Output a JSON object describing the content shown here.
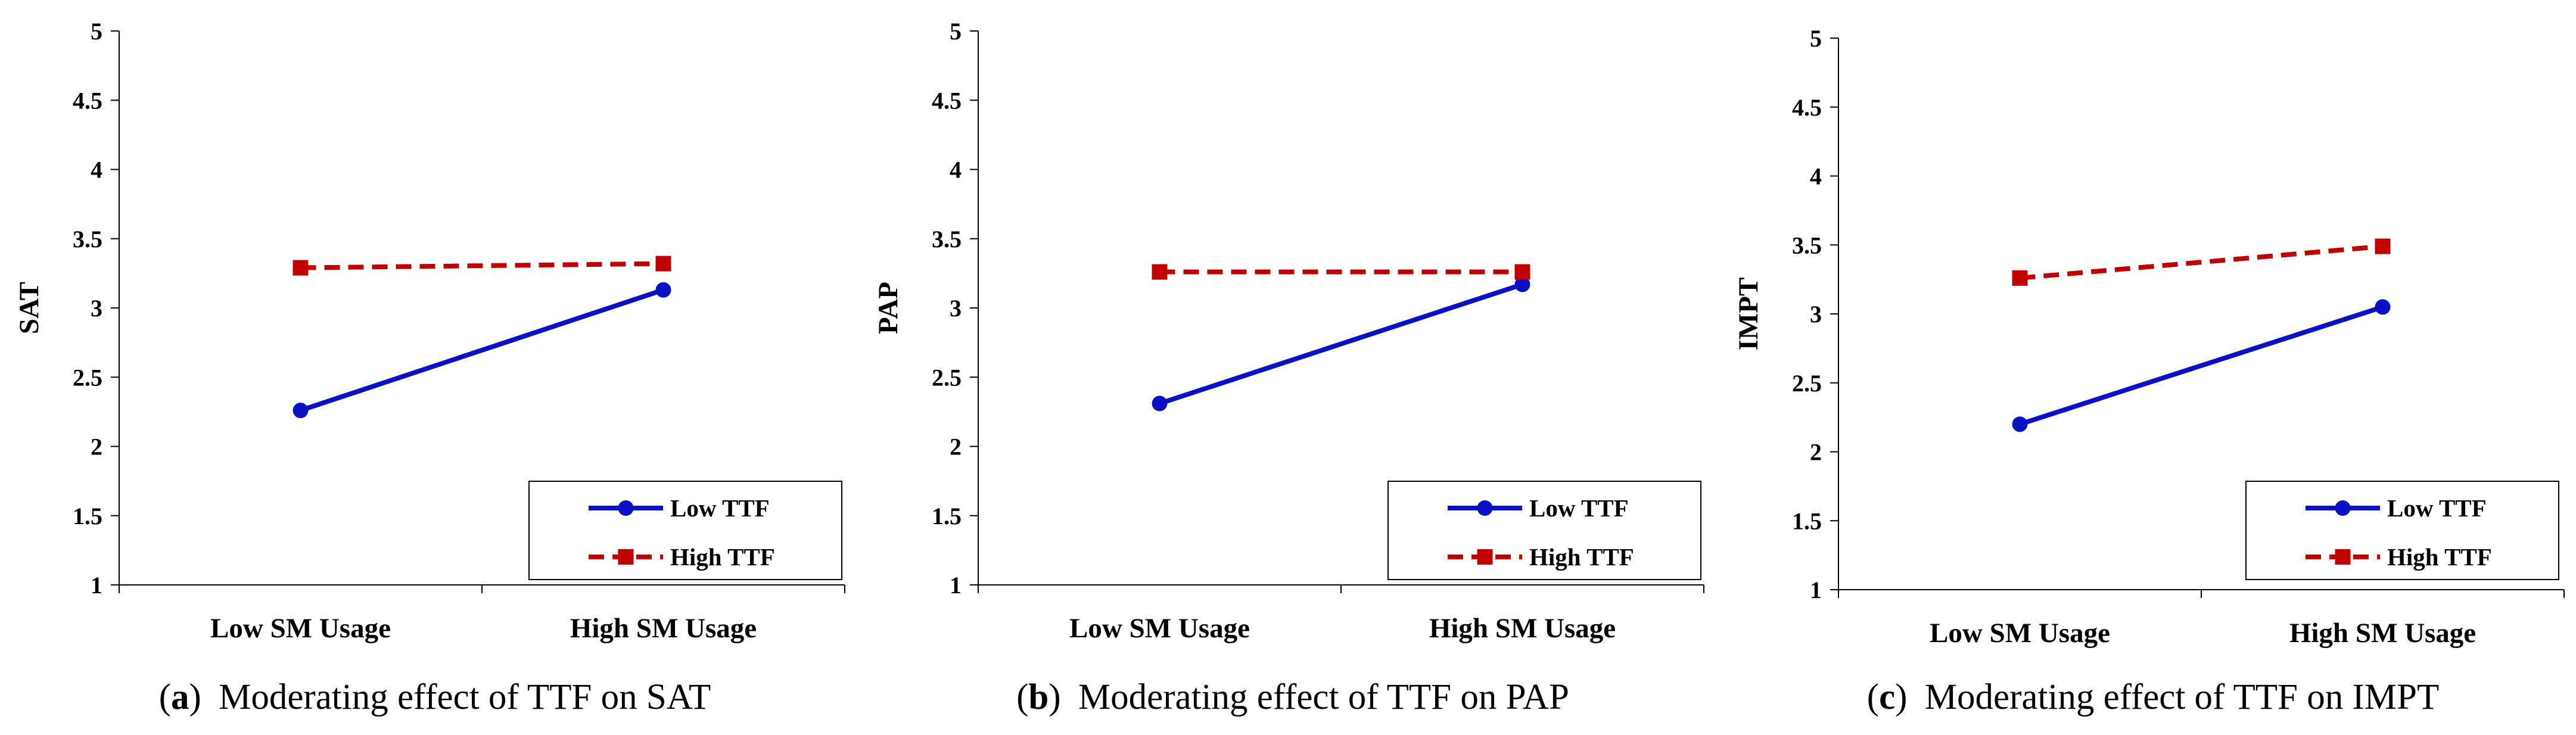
{
  "chart_data": [
    {
      "type": "line",
      "panel": "a",
      "caption": "Moderating effect of TTF on SAT",
      "ylabel": "SAT",
      "xlabel": "",
      "categories": [
        "Low SM Usage",
        "High SM Usage"
      ],
      "yticks": [
        "1",
        "1.5",
        "2",
        "2.5",
        "3",
        "3.5",
        "4",
        "4.5",
        "5"
      ],
      "ylim": [
        1,
        5
      ],
      "grid": false,
      "legend_position": "bottom-right",
      "series": [
        {
          "name": "Low TTF",
          "values": [
            2.26,
            3.13
          ],
          "color": "#0a10c4",
          "style": "solid",
          "marker": "circle"
        },
        {
          "name": "High TTF",
          "values": [
            3.29,
            3.32
          ],
          "color": "#c00000",
          "style": "dashed",
          "marker": "square"
        }
      ]
    },
    {
      "type": "line",
      "panel": "b",
      "caption": "Moderating effect of TTF on PAP",
      "ylabel": "PAP",
      "xlabel": "",
      "categories": [
        "Low SM Usage",
        "High SM Usage"
      ],
      "yticks": [
        "1",
        "1.5",
        "2",
        "2.5",
        "3",
        "3.5",
        "4",
        "4.5",
        "5"
      ],
      "ylim": [
        1,
        5
      ],
      "grid": false,
      "legend_position": "bottom-right",
      "series": [
        {
          "name": "Low TTF",
          "values": [
            2.31,
            3.17
          ],
          "color": "#0a10c4",
          "style": "solid",
          "marker": "circle"
        },
        {
          "name": "High TTF",
          "values": [
            3.26,
            3.26
          ],
          "color": "#c00000",
          "style": "dashed",
          "marker": "square"
        }
      ]
    },
    {
      "type": "line",
      "panel": "c",
      "caption": "Moderating effect of TTF on IMPT",
      "ylabel": "IMPT",
      "xlabel": "",
      "categories": [
        "Low SM Usage",
        "High SM Usage"
      ],
      "yticks": [
        "1",
        "1.5",
        "2",
        "2.5",
        "3",
        "3.5",
        "4",
        "4.5",
        "5"
      ],
      "ylim": [
        1,
        5
      ],
      "grid": false,
      "legend_position": "bottom-right",
      "series": [
        {
          "name": "Low TTF",
          "values": [
            2.2,
            3.05
          ],
          "color": "#0a10c4",
          "style": "solid",
          "marker": "circle"
        },
        {
          "name": "High TTF",
          "values": [
            3.26,
            3.49
          ],
          "color": "#c00000",
          "style": "dashed",
          "marker": "square"
        }
      ]
    }
  ]
}
